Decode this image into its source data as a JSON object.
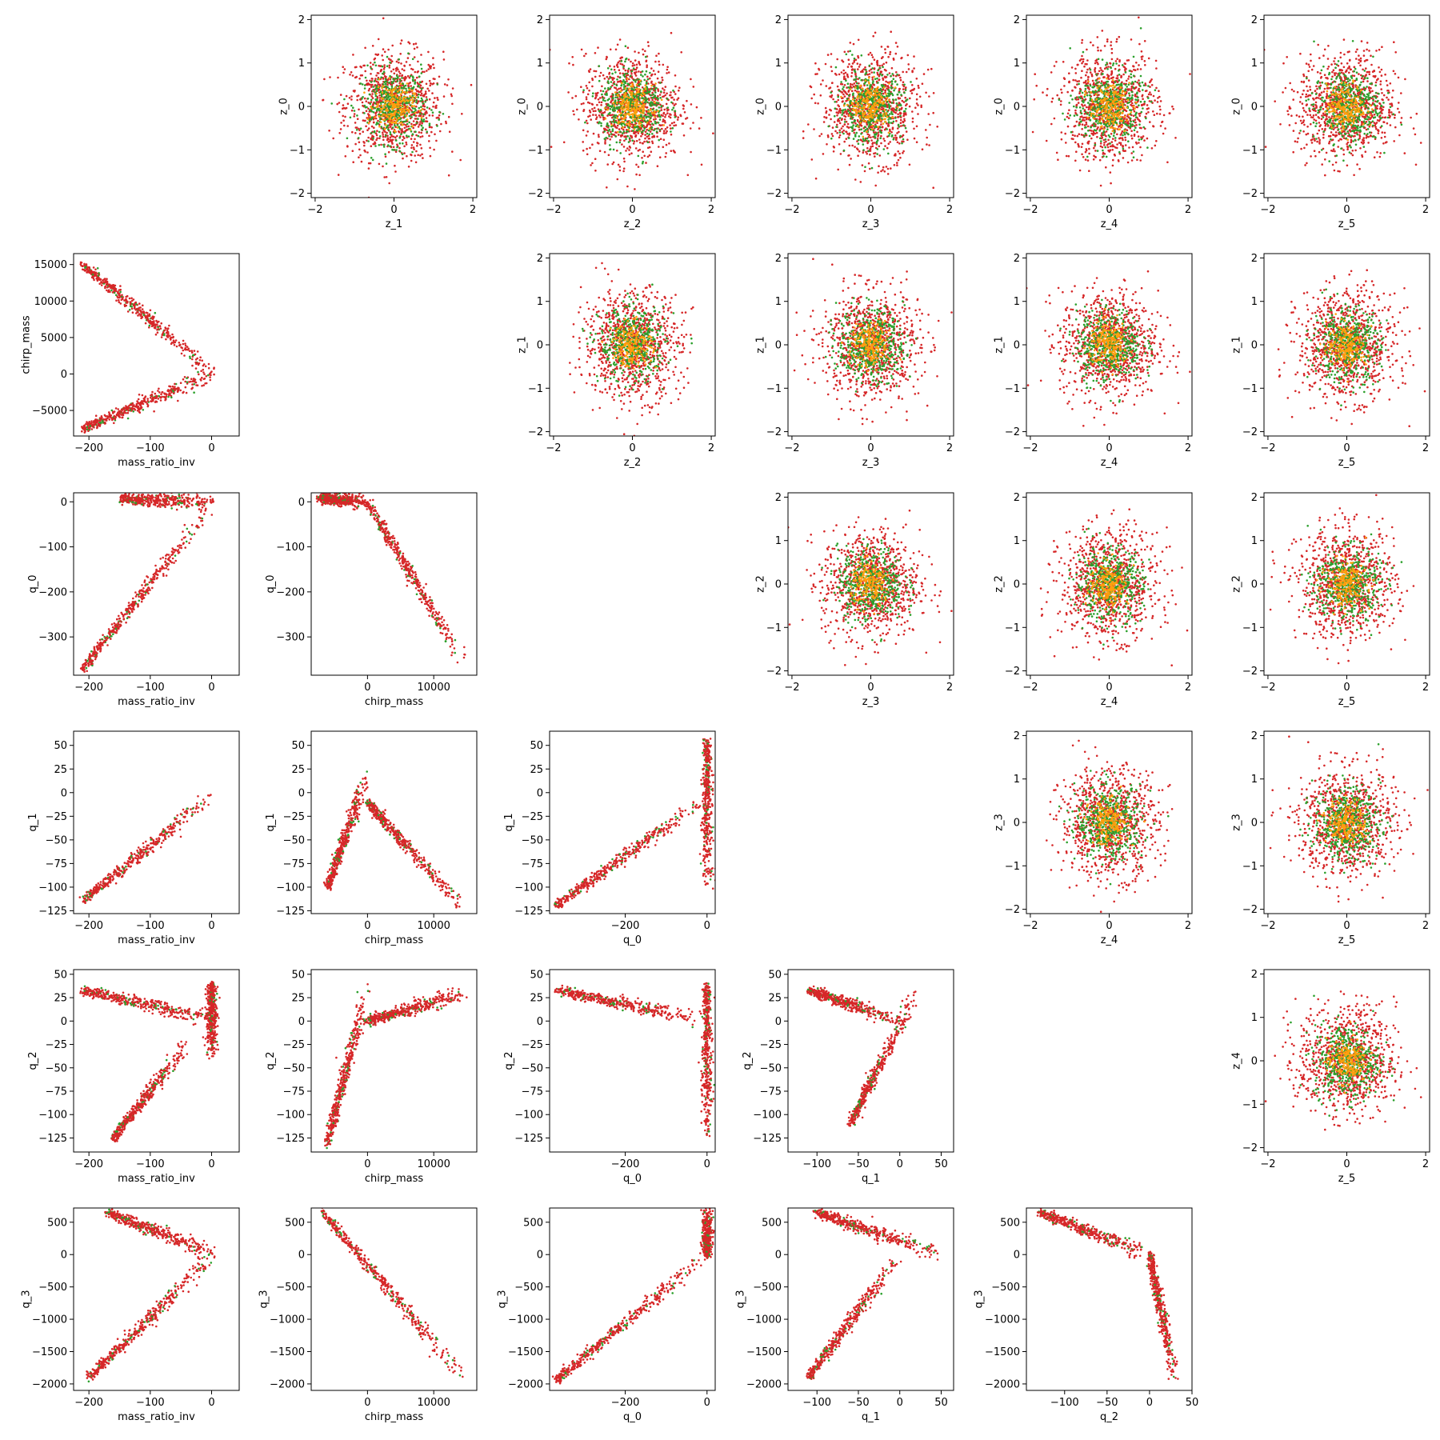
{
  "colors": {
    "red": "#d62728",
    "green": "#2ca02c",
    "orange": "#ff9f0e"
  },
  "chart_data": [
    {
      "type": "scatter",
      "xlabel": "z_1",
      "ylabel": "z_0",
      "xlim": [
        -2.1,
        2.1
      ],
      "ylim": [
        -2.1,
        2.1
      ],
      "xticks": [
        -2,
        0,
        2
      ],
      "yticks": [
        -2,
        -1,
        0,
        1,
        2
      ],
      "pattern": "blob",
      "spread": [
        0.7,
        0.7
      ]
    },
    {
      "type": "scatter",
      "xlabel": "z_2",
      "ylabel": "z_0",
      "xlim": [
        -2.1,
        2.1
      ],
      "ylim": [
        -2.1,
        2.1
      ],
      "xticks": [
        -2,
        0,
        2
      ],
      "yticks": [
        -2,
        -1,
        0,
        1,
        2
      ],
      "pattern": "blob",
      "spread": [
        0.7,
        0.7
      ]
    },
    {
      "type": "scatter",
      "xlabel": "z_3",
      "ylabel": "z_0",
      "xlim": [
        -2.1,
        2.1
      ],
      "ylim": [
        -2.1,
        2.1
      ],
      "xticks": [
        -2,
        0,
        2
      ],
      "yticks": [
        -2,
        -1,
        0,
        1,
        2
      ],
      "pattern": "blob",
      "spread": [
        0.7,
        0.7
      ]
    },
    {
      "type": "scatter",
      "xlabel": "z_4",
      "ylabel": "z_0",
      "xlim": [
        -2.1,
        2.1
      ],
      "ylim": [
        -2.1,
        2.1
      ],
      "xticks": [
        -2,
        0,
        2
      ],
      "yticks": [
        -2,
        -1,
        0,
        1,
        2
      ],
      "pattern": "blob",
      "spread": [
        0.7,
        0.7
      ]
    },
    {
      "type": "scatter",
      "xlabel": "z_5",
      "ylabel": "z_0",
      "xlim": [
        -2.1,
        2.1
      ],
      "ylim": [
        -2.1,
        2.1
      ],
      "xticks": [
        -2,
        0,
        2
      ],
      "yticks": [
        -2,
        -1,
        0,
        1,
        2
      ],
      "pattern": "blob",
      "spread": [
        0.7,
        0.7
      ]
    },
    {
      "type": "scatter",
      "xlabel": "mass_ratio_inv",
      "ylabel": "chirp_mass",
      "xlim": [
        -225,
        45
      ],
      "ylim": [
        -8500,
        16500
      ],
      "xticks": [
        -200,
        -100,
        0
      ],
      "yticks": [
        -5000,
        0,
        5000,
        10000,
        15000
      ],
      "pattern": "vshape",
      "segments": [
        [
          [
            -210,
            15000
          ],
          [
            5,
            0
          ]
        ],
        [
          [
            -210,
            -7500
          ],
          [
            5,
            0
          ]
        ]
      ]
    },
    {
      "type": "scatter",
      "xlabel": "z_2",
      "ylabel": "z_1",
      "xlim": [
        -2.1,
        2.1
      ],
      "ylim": [
        -2.1,
        2.1
      ],
      "xticks": [
        -2,
        0,
        2
      ],
      "yticks": [
        -2,
        -1,
        0,
        1,
        2
      ],
      "pattern": "blob",
      "spread": [
        0.7,
        0.7
      ]
    },
    {
      "type": "scatter",
      "xlabel": "z_3",
      "ylabel": "z_1",
      "xlim": [
        -2.1,
        2.1
      ],
      "ylim": [
        -2.1,
        2.1
      ],
      "xticks": [
        -2,
        0,
        2
      ],
      "yticks": [
        -2,
        -1,
        0,
        1,
        2
      ],
      "pattern": "blob",
      "spread": [
        0.7,
        0.7
      ]
    },
    {
      "type": "scatter",
      "xlabel": "z_4",
      "ylabel": "z_1",
      "xlim": [
        -2.1,
        2.1
      ],
      "ylim": [
        -2.1,
        2.1
      ],
      "xticks": [
        -2,
        0,
        2
      ],
      "yticks": [
        -2,
        -1,
        0,
        1,
        2
      ],
      "pattern": "blob",
      "spread": [
        0.7,
        0.7
      ]
    },
    {
      "type": "scatter",
      "xlabel": "z_5",
      "ylabel": "z_1",
      "xlim": [
        -2.1,
        2.1
      ],
      "ylim": [
        -2.1,
        2.1
      ],
      "xticks": [
        -2,
        0,
        2
      ],
      "yticks": [
        -2,
        -1,
        0,
        1,
        2
      ],
      "pattern": "blob",
      "spread": [
        0.7,
        0.7
      ]
    },
    {
      "type": "scatter",
      "xlabel": "mass_ratio_inv",
      "ylabel": "q_0",
      "xlim": [
        -225,
        45
      ],
      "ylim": [
        -385,
        20
      ],
      "xticks": [
        -200,
        -100,
        0
      ],
      "yticks": [
        -300,
        -200,
        -100,
        0
      ],
      "pattern": "vshape",
      "segments": [
        [
          [
            -210,
            -370
          ],
          [
            5,
            0
          ]
        ],
        [
          [
            -150,
            7
          ],
          [
            5,
            0
          ]
        ]
      ]
    },
    {
      "type": "scatter",
      "xlabel": "chirp_mass",
      "ylabel": "q_0",
      "xlim": [
        -8500,
        16500
      ],
      "ylim": [
        -385,
        20
      ],
      "xticks": [
        0,
        10000
      ],
      "yticks": [
        -300,
        -200,
        -100,
        0
      ],
      "pattern": "segments",
      "segments": [
        [
          [
            -7000,
            8
          ],
          [
            0,
            0
          ]
        ],
        [
          [
            0,
            0
          ],
          [
            15000,
            -370
          ]
        ]
      ]
    },
    {
      "type": "scatter",
      "xlabel": "z_3",
      "ylabel": "z_2",
      "xlim": [
        -2.1,
        2.1
      ],
      "ylim": [
        -2.1,
        2.1
      ],
      "xticks": [
        -2,
        0,
        2
      ],
      "yticks": [
        -2,
        -1,
        0,
        1,
        2
      ],
      "pattern": "blob",
      "spread": [
        0.7,
        0.7
      ]
    },
    {
      "type": "scatter",
      "xlabel": "z_4",
      "ylabel": "z_2",
      "xlim": [
        -2.1,
        2.1
      ],
      "ylim": [
        -2.1,
        2.1
      ],
      "xticks": [
        -2,
        0,
        2
      ],
      "yticks": [
        -2,
        -1,
        0,
        1,
        2
      ],
      "pattern": "blob",
      "spread": [
        0.7,
        0.7
      ]
    },
    {
      "type": "scatter",
      "xlabel": "z_5",
      "ylabel": "z_2",
      "xlim": [
        -2.1,
        2.1
      ],
      "ylim": [
        -2.1,
        2.1
      ],
      "xticks": [
        -2,
        0,
        2
      ],
      "yticks": [
        -2,
        -1,
        0,
        1,
        2
      ],
      "pattern": "blob",
      "spread": [
        0.7,
        0.7
      ]
    },
    {
      "type": "scatter",
      "xlabel": "mass_ratio_inv",
      "ylabel": "q_1",
      "xlim": [
        -225,
        45
      ],
      "ylim": [
        -128,
        65
      ],
      "xticks": [
        -200,
        -100,
        0
      ],
      "yticks": [
        -125,
        -100,
        -75,
        -50,
        -25,
        0,
        25,
        50
      ],
      "pattern": "segments",
      "segments": [
        [
          [
            -210,
            -115
          ],
          [
            5,
            0
          ]
        ]
      ]
    },
    {
      "type": "scatter",
      "xlabel": "chirp_mass",
      "ylabel": "q_1",
      "xlim": [
        -8500,
        16500
      ],
      "ylim": [
        -128,
        65
      ],
      "xticks": [
        0,
        10000
      ],
      "yticks": [
        -125,
        -100,
        -75,
        -50,
        -25,
        0,
        25,
        50
      ],
      "pattern": "segments",
      "segments": [
        [
          [
            -6000,
            -100
          ],
          [
            0,
            20
          ]
        ],
        [
          [
            0,
            -10
          ],
          [
            14000,
            -120
          ]
        ]
      ]
    },
    {
      "type": "scatter",
      "xlabel": "q_0",
      "ylabel": "q_1",
      "xlim": [
        -385,
        20
      ],
      "ylim": [
        -128,
        65
      ],
      "xticks": [
        -200,
        0
      ],
      "yticks": [
        -125,
        -100,
        -75,
        -50,
        -25,
        0,
        25,
        50
      ],
      "pattern": "segments",
      "segments": [
        [
          [
            -370,
            -120
          ],
          [
            0,
            -5
          ]
        ],
        [
          [
            0,
            55
          ],
          [
            0,
            -105
          ]
        ]
      ]
    },
    {
      "type": "scatter",
      "xlabel": "z_4",
      "ylabel": "z_3",
      "xlim": [
        -2.1,
        2.1
      ],
      "ylim": [
        -2.1,
        2.1
      ],
      "xticks": [
        -2,
        0,
        2
      ],
      "yticks": [
        -2,
        -1,
        0,
        1,
        2
      ],
      "pattern": "blob",
      "spread": [
        0.7,
        0.7
      ]
    },
    {
      "type": "scatter",
      "xlabel": "z_5",
      "ylabel": "z_3",
      "xlim": [
        -2.1,
        2.1
      ],
      "ylim": [
        -2.1,
        2.1
      ],
      "xticks": [
        -2,
        0,
        2
      ],
      "yticks": [
        -2,
        -1,
        0,
        1,
        2
      ],
      "pattern": "blob",
      "spread": [
        0.7,
        0.7
      ]
    },
    {
      "type": "scatter",
      "xlabel": "mass_ratio_inv",
      "ylabel": "q_2",
      "xlim": [
        -225,
        45
      ],
      "ylim": [
        -140,
        55
      ],
      "xticks": [
        -200,
        -100,
        0
      ],
      "yticks": [
        -125,
        -100,
        -75,
        -50,
        -25,
        0,
        25,
        50
      ],
      "pattern": "segments",
      "segments": [
        [
          [
            -210,
            33
          ],
          [
            20,
            0
          ]
        ],
        [
          [
            -160,
            -125
          ],
          [
            -40,
            -25
          ]
        ],
        [
          [
            0,
            40
          ],
          [
            0,
            -40
          ]
        ]
      ]
    },
    {
      "type": "scatter",
      "xlabel": "chirp_mass",
      "ylabel": "q_2",
      "xlim": [
        -8500,
        16500
      ],
      "ylim": [
        -140,
        55
      ],
      "xticks": [
        0,
        10000
      ],
      "yticks": [
        -125,
        -100,
        -75,
        -50,
        -25,
        0,
        25,
        50
      ],
      "pattern": "segments",
      "segments": [
        [
          [
            0,
            0
          ],
          [
            15000,
            30
          ]
        ],
        [
          [
            -6000,
            -130
          ],
          [
            0,
            40
          ]
        ]
      ]
    },
    {
      "type": "scatter",
      "xlabel": "q_0",
      "ylabel": "q_2",
      "xlim": [
        -385,
        20
      ],
      "ylim": [
        -140,
        55
      ],
      "xticks": [
        -200,
        0
      ],
      "yticks": [
        -125,
        -100,
        -75,
        -50,
        -25,
        0,
        25,
        50
      ],
      "pattern": "segments",
      "segments": [
        [
          [
            -370,
            33
          ],
          [
            0,
            0
          ]
        ],
        [
          [
            0,
            40
          ],
          [
            0,
            -130
          ]
        ]
      ]
    },
    {
      "type": "scatter",
      "xlabel": "q_1",
      "ylabel": "q_2",
      "xlim": [
        -135,
        65
      ],
      "ylim": [
        -140,
        55
      ],
      "xticks": [
        -100,
        -50,
        0,
        50
      ],
      "yticks": [
        -125,
        -100,
        -75,
        -50,
        -25,
        0,
        25,
        50
      ],
      "pattern": "segments",
      "segments": [
        [
          [
            -110,
            33
          ],
          [
            0,
            0
          ]
        ],
        [
          [
            -60,
            -110
          ],
          [
            20,
            30
          ]
        ]
      ]
    },
    {
      "type": "scatter",
      "xlabel": "z_5",
      "ylabel": "z_4",
      "xlim": [
        -2.1,
        2.1
      ],
      "ylim": [
        -2.1,
        2.1
      ],
      "xticks": [
        -2,
        0,
        2
      ],
      "yticks": [
        -2,
        -1,
        0,
        1,
        2
      ],
      "pattern": "blob",
      "spread": [
        0.7,
        0.7
      ]
    },
    {
      "type": "scatter",
      "xlabel": "mass_ratio_inv",
      "ylabel": "q_3",
      "xlim": [
        -225,
        45
      ],
      "ylim": [
        -2100,
        720
      ],
      "xticks": [
        -200,
        -100,
        0
      ],
      "yticks": [
        -2000,
        -1500,
        -1000,
        -500,
        0,
        500
      ],
      "pattern": "vshape",
      "segments": [
        [
          [
            -200,
            -1900
          ],
          [
            5,
            0
          ]
        ],
        [
          [
            -170,
            650
          ],
          [
            5,
            0
          ]
        ]
      ]
    },
    {
      "type": "scatter",
      "xlabel": "chirp_mass",
      "ylabel": "q_3",
      "xlim": [
        -8500,
        16500
      ],
      "ylim": [
        -2100,
        720
      ],
      "xticks": [
        0,
        10000
      ],
      "yticks": [
        -2000,
        -1500,
        -1000,
        -500,
        0,
        500
      ],
      "pattern": "segments",
      "segments": [
        [
          [
            -7000,
            680
          ],
          [
            15000,
            -1950
          ]
        ]
      ]
    },
    {
      "type": "scatter",
      "xlabel": "q_0",
      "ylabel": "q_3",
      "xlim": [
        -385,
        20
      ],
      "ylim": [
        -2100,
        720
      ],
      "xticks": [
        -200,
        0
      ],
      "yticks": [
        -2000,
        -1500,
        -1000,
        -500,
        0,
        500
      ],
      "pattern": "segments",
      "segments": [
        [
          [
            -370,
            -1950
          ],
          [
            0,
            0
          ]
        ],
        [
          [
            0,
            0
          ],
          [
            0,
            680
          ]
        ]
      ]
    },
    {
      "type": "scatter",
      "xlabel": "q_1",
      "ylabel": "q_3",
      "xlim": [
        -135,
        65
      ],
      "ylim": [
        -2100,
        720
      ],
      "xticks": [
        -100,
        -50,
        0,
        50
      ],
      "yticks": [
        -2000,
        -1500,
        -1000,
        -500,
        0,
        500
      ],
      "pattern": "segments",
      "segments": [
        [
          [
            -110,
            -1900
          ],
          [
            0,
            0
          ]
        ],
        [
          [
            -100,
            650
          ],
          [
            50,
            0
          ]
        ]
      ]
    },
    {
      "type": "scatter",
      "xlabel": "q_2",
      "ylabel": "q_3",
      "xlim": [
        -145,
        50
      ],
      "ylim": [
        -2100,
        720
      ],
      "xticks": [
        -100,
        -50,
        0,
        50
      ],
      "yticks": [
        -2000,
        -1500,
        -1000,
        -500,
        0,
        500
      ],
      "pattern": "segments",
      "segments": [
        [
          [
            -130,
            650
          ],
          [
            0,
            0
          ]
        ],
        [
          [
            0,
            0
          ],
          [
            30,
            -1950
          ]
        ]
      ]
    }
  ]
}
